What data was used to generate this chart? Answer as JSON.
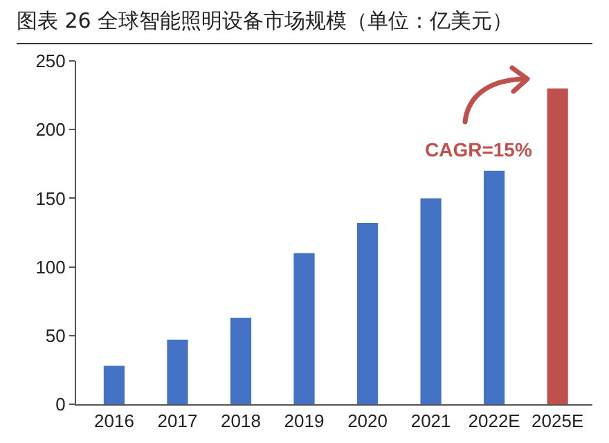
{
  "chart_data": {
    "type": "bar",
    "title": "图表 26 全球智能照明设备市场规模（单位：亿美元）",
    "categories": [
      "2016",
      "2017",
      "2018",
      "2019",
      "2020",
      "2021",
      "2022E",
      "2025E"
    ],
    "values": [
      28,
      47,
      63,
      110,
      132,
      150,
      170,
      230
    ],
    "colors": [
      "#4472c4",
      "#4472c4",
      "#4472c4",
      "#4472c4",
      "#4472c4",
      "#4472c4",
      "#4472c4",
      "#c0504d"
    ],
    "ylim": [
      0,
      250
    ],
    "yticks": [
      0,
      50,
      100,
      150,
      200,
      250
    ],
    "grid": false,
    "legend": false,
    "annotations": [
      "CAGR=15%"
    ]
  }
}
